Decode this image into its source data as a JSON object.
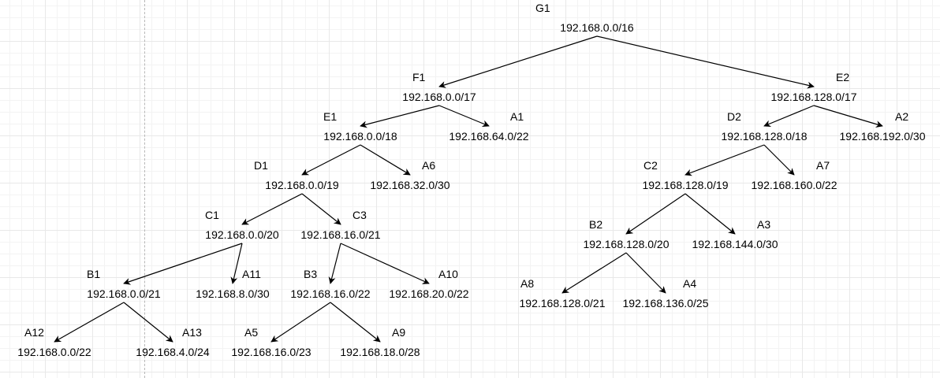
{
  "colors": {
    "edge": "#000000",
    "text": "#000000",
    "background": "#ffffff"
  },
  "tree": {
    "nodes": [
      {
        "id": "G1",
        "name": "G1",
        "network": "192.168.0.0/16"
      },
      {
        "id": "F1",
        "name": "F1",
        "network": "192.168.0.0/17"
      },
      {
        "id": "E2",
        "name": "E2",
        "network": "192.168.128.0/17"
      },
      {
        "id": "E1",
        "name": "E1",
        "network": "192.168.0.0/18"
      },
      {
        "id": "A1",
        "name": "A1",
        "network": "192.168.64.0/22"
      },
      {
        "id": "D2",
        "name": "D2",
        "network": "192.168.128.0/18"
      },
      {
        "id": "A2",
        "name": "A2",
        "network": "192.168.192.0/30"
      },
      {
        "id": "D1",
        "name": "D1",
        "network": "192.168.0.0/19"
      },
      {
        "id": "A6",
        "name": "A6",
        "network": "192.168.32.0/30"
      },
      {
        "id": "C2",
        "name": "C2",
        "network": "192.168.128.0/19"
      },
      {
        "id": "A7",
        "name": "A7",
        "network": "192.168.160.0/22"
      },
      {
        "id": "C1",
        "name": "C1",
        "network": "192.168.0.0/20"
      },
      {
        "id": "C3",
        "name": "C3",
        "network": "192.168.16.0/21"
      },
      {
        "id": "B2",
        "name": "B2",
        "network": "192.168.128.0/20"
      },
      {
        "id": "A3",
        "name": "A3",
        "network": "192.168.144.0/30"
      },
      {
        "id": "B1",
        "name": "B1",
        "network": "192.168.0.0/21"
      },
      {
        "id": "A11",
        "name": "A11",
        "network": "192.168.8.0/30"
      },
      {
        "id": "B3",
        "name": "B3",
        "network": "192.168.16.0/22"
      },
      {
        "id": "A10",
        "name": "A10",
        "network": "192.168.20.0/22"
      },
      {
        "id": "A8",
        "name": "A8",
        "network": "192.168.128.0/21"
      },
      {
        "id": "A4",
        "name": "A4",
        "network": "192.168.136.0/25"
      },
      {
        "id": "A12",
        "name": "A12",
        "network": "192.168.0.0/22"
      },
      {
        "id": "A13",
        "name": "A13",
        "network": "192.168.4.0/24"
      },
      {
        "id": "A5",
        "name": "A5",
        "network": "192.168.16.0/23"
      },
      {
        "id": "A9",
        "name": "A9",
        "network": "192.168.18.0/28"
      }
    ],
    "edges": [
      [
        "G1",
        "F1"
      ],
      [
        "G1",
        "E2"
      ],
      [
        "F1",
        "E1"
      ],
      [
        "F1",
        "A1"
      ],
      [
        "E2",
        "D2"
      ],
      [
        "E2",
        "A2"
      ],
      [
        "E1",
        "D1"
      ],
      [
        "E1",
        "A6"
      ],
      [
        "D2",
        "C2"
      ],
      [
        "D2",
        "A7"
      ],
      [
        "D1",
        "C1"
      ],
      [
        "D1",
        "C3"
      ],
      [
        "C2",
        "B2"
      ],
      [
        "C2",
        "A3"
      ],
      [
        "C1",
        "B1"
      ],
      [
        "C1",
        "A11"
      ],
      [
        "C3",
        "B3"
      ],
      [
        "C3",
        "A10"
      ],
      [
        "B2",
        "A8"
      ],
      [
        "B2",
        "A4"
      ],
      [
        "B1",
        "A12"
      ],
      [
        "B1",
        "A13"
      ],
      [
        "B3",
        "A5"
      ],
      [
        "B3",
        "A9"
      ]
    ]
  }
}
